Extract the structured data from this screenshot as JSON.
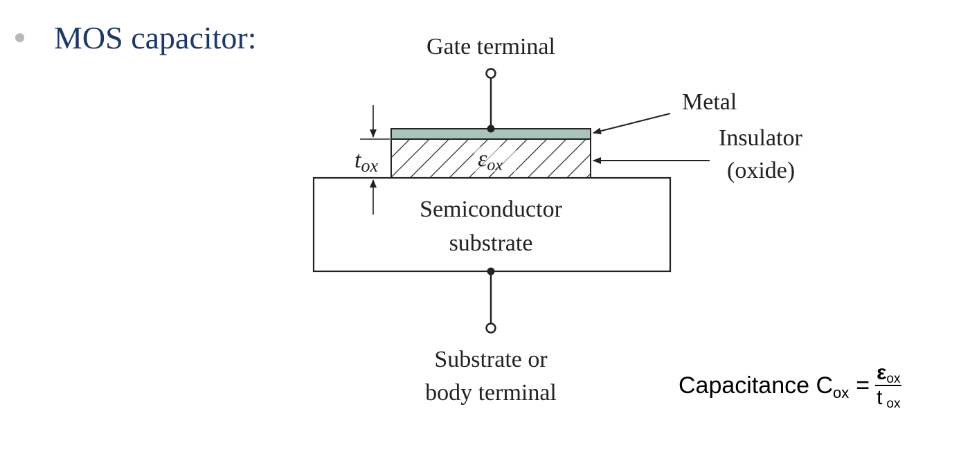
{
  "slide": {
    "bullet_text": "MOS capacitor:"
  },
  "diagram": {
    "labels": {
      "gate_terminal": "Gate terminal",
      "metal": "Metal",
      "insulator": "Insulator",
      "oxide": "(oxide)",
      "semiconductor_line1": "Semiconductor",
      "semiconductor_line2": "substrate",
      "body_line1": "Substrate or",
      "body_line2": "body terminal",
      "tox_main": "t",
      "tox_sub": "ox",
      "eps_main": "ε",
      "eps_sub": "ox"
    },
    "colors": {
      "metal": "#a8c4bb",
      "line": "#222222",
      "heading": "#1f3766"
    }
  },
  "formula": {
    "prefix": "Capacitance C",
    "prefix_sub": "ox",
    "equals": "=",
    "numerator": "ε",
    "numerator_sub": "ox",
    "denominator": "t",
    "denominator_sub": "ox"
  }
}
